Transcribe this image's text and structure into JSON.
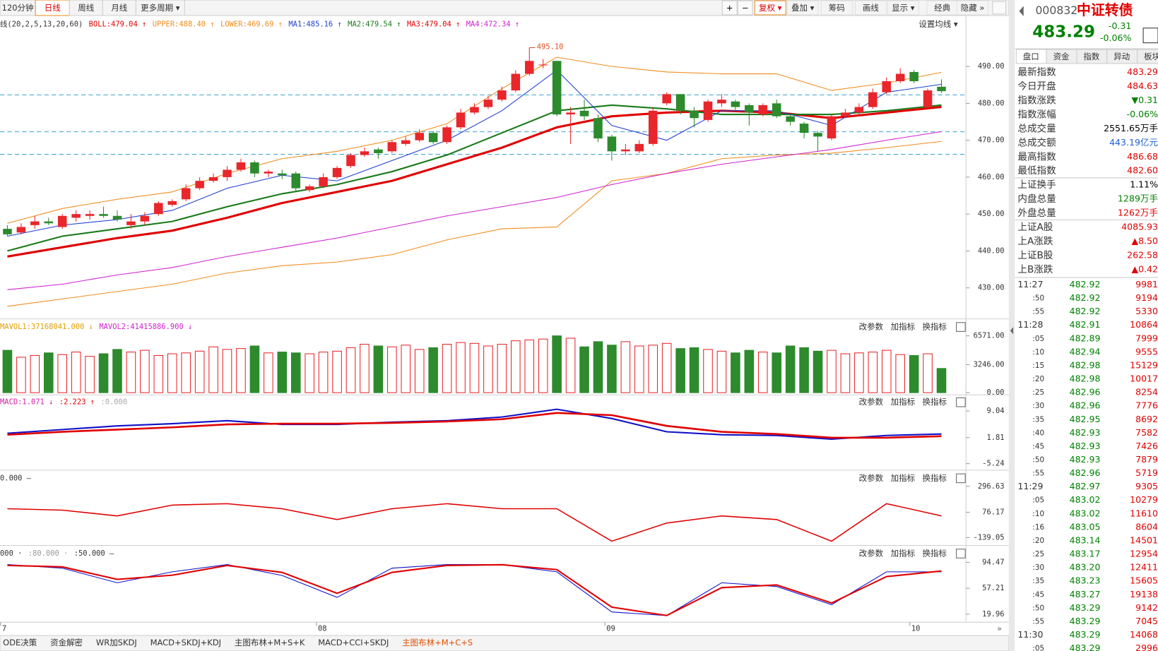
{
  "toolbar": {
    "periods": [
      "120分钟",
      "日线",
      "周线",
      "月线",
      "更多周期 ▾"
    ],
    "active_period": 1,
    "tools": [
      "复权 ▾",
      "叠加 ▾",
      "筹码",
      "画线",
      "显示 ▾",
      "经典",
      "隐藏 »"
    ],
    "active_tool": 0
  },
  "main": {
    "legend": [
      {
        "text": "线(20,2,5,13,20,60)",
        "color": "#333333"
      },
      {
        "text": "BOLL:479.04 ↑",
        "color": "#e00000"
      },
      {
        "text": "UPPER:488.40 ↑",
        "color": "#f08c1e"
      },
      {
        "text": "LOWER:469.69 ↑",
        "color": "#f08c1e"
      },
      {
        "text": "MA1:485.16 ↑",
        "color": "#1f3fd0"
      },
      {
        "text": "MA2:479.54 ↑",
        "color": "#1a7a1a"
      },
      {
        "text": "MA3:479.04 ↑",
        "color": "#e00000"
      },
      {
        "text": "MA4:472.34 ↑",
        "color": "#d020d0"
      }
    ],
    "setting": "设置均线 ▾",
    "annotation": {
      "label": "495.10",
      "value": 495.1,
      "index": 38
    },
    "up_color": "#e8262b",
    "down_color": "#2d8a2d",
    "candles": [
      [
        446,
        444.5,
        447,
        444
      ],
      [
        445,
        446.5,
        447.5,
        444.5
      ],
      [
        447,
        448,
        449.5,
        446
      ],
      [
        448,
        447.5,
        449,
        447
      ],
      [
        446.5,
        449.5,
        450,
        446
      ],
      [
        449,
        450,
        451,
        448
      ],
      [
        449.5,
        450,
        451,
        448.5
      ],
      [
        450,
        449.5,
        452,
        449
      ],
      [
        449.5,
        448.5,
        451,
        448
      ],
      [
        447,
        448,
        450,
        446
      ],
      [
        448,
        449.5,
        450.5,
        447
      ],
      [
        450,
        453,
        453.5,
        449.5
      ],
      [
        452.5,
        453.5,
        454,
        452
      ],
      [
        454,
        457,
        458,
        453.5
      ],
      [
        457,
        459,
        460,
        456.5
      ],
      [
        459,
        460,
        461,
        458.5
      ],
      [
        460,
        462,
        463,
        459
      ],
      [
        462,
        464,
        465,
        461.5
      ],
      [
        464,
        461,
        464.5,
        460
      ],
      [
        461,
        461.5,
        462,
        460
      ],
      [
        461,
        460.5,
        462,
        459.5
      ],
      [
        461,
        457,
        461.5,
        456
      ],
      [
        456.5,
        457.5,
        458,
        456
      ],
      [
        457.5,
        460,
        461,
        457
      ],
      [
        460,
        462.5,
        463,
        459.5
      ],
      [
        463,
        466,
        466.5,
        462.5
      ],
      [
        466,
        467,
        468,
        465.5
      ],
      [
        467.5,
        466.5,
        468,
        465
      ],
      [
        467,
        469.5,
        470,
        466.5
      ],
      [
        469,
        470,
        471,
        468.5
      ],
      [
        470,
        472,
        473,
        469.5
      ],
      [
        472,
        469.5,
        472.5,
        469
      ],
      [
        469.5,
        473.5,
        474,
        469
      ],
      [
        473.5,
        477.5,
        478.5,
        473
      ],
      [
        477.5,
        479,
        480,
        477
      ],
      [
        479,
        481,
        482,
        478.5
      ],
      [
        481,
        483.5,
        484.5,
        480.5
      ],
      [
        483.5,
        488,
        489,
        483
      ],
      [
        488,
        491.5,
        495.1,
        487.5
      ],
      [
        490.5,
        490.5,
        492,
        489.5
      ],
      [
        491.5,
        477,
        491.5,
        476.5
      ],
      [
        477,
        477.5,
        479,
        469
      ],
      [
        478,
        476.5,
        481,
        475.5
      ],
      [
        476,
        470.5,
        477,
        469.5
      ],
      [
        471,
        467,
        471.5,
        464.5
      ],
      [
        467,
        467.5,
        469,
        466
      ],
      [
        467,
        469,
        470,
        466.5
      ],
      [
        469,
        478,
        479,
        468.5
      ],
      [
        480,
        482.5,
        483,
        479.5
      ],
      [
        482.5,
        478,
        482.5,
        477
      ],
      [
        478,
        476,
        479,
        473.5
      ],
      [
        475.5,
        480.5,
        481,
        475
      ],
      [
        480,
        481,
        482.5,
        479
      ],
      [
        480.5,
        479,
        481,
        478
      ],
      [
        479.5,
        477.5,
        480,
        474
      ],
      [
        477,
        479.5,
        480,
        476.5
      ],
      [
        480,
        476.5,
        481,
        476
      ],
      [
        476.5,
        475,
        477,
        474
      ],
      [
        474.5,
        472,
        475,
        470.5
      ],
      [
        472,
        471,
        472.5,
        467
      ],
      [
        470.5,
        476.5,
        477,
        470
      ],
      [
        476.5,
        477.5,
        478.5,
        476
      ],
      [
        477.5,
        479,
        480,
        477
      ],
      [
        479,
        483,
        484,
        478.5
      ],
      [
        483,
        486,
        487,
        482.5
      ],
      [
        486,
        488,
        489.5,
        485.5
      ],
      [
        488.5,
        486,
        489,
        485.5
      ],
      [
        479,
        483.5,
        484,
        478.5
      ],
      [
        484.5,
        483.3,
        486.5,
        482.8
      ]
    ],
    "x": [
      0,
      4,
      8,
      12,
      16,
      20,
      24,
      28,
      32,
      36,
      40,
      44,
      48,
      52,
      56,
      60,
      64,
      68
    ],
    "series": [
      {
        "name": "UPPER",
        "color": "#f08c1e",
        "width": 1,
        "values": [
          447.5,
          451.5,
          454,
          456,
          461,
          465,
          467,
          470,
          474.5,
          484,
          492.5,
          490,
          488.5,
          488,
          488,
          483.5,
          485.5,
          488.4
        ]
      },
      {
        "name": "LOWER",
        "color": "#f08c1e",
        "width": 1,
        "values": [
          425,
          427,
          429,
          431,
          434,
          436,
          437,
          439,
          443,
          446,
          446.5,
          459,
          461,
          465,
          466,
          466.5,
          468,
          469.69
        ]
      },
      {
        "name": "MA4",
        "color": "#d020d0",
        "width": 1,
        "values": [
          429.5,
          431,
          433.5,
          435.5,
          438.5,
          441,
          443.5,
          446.5,
          449.5,
          452,
          454.5,
          458,
          461,
          463.5,
          465.5,
          467.5,
          470,
          472.34
        ]
      },
      {
        "name": "MA3",
        "color": "#e00000",
        "width": 3,
        "values": [
          438.5,
          441,
          443.5,
          445.5,
          449,
          453,
          456,
          459,
          463.5,
          468,
          473.5,
          476.5,
          477.5,
          478,
          477.5,
          476,
          477.5,
          479.04
        ]
      },
      {
        "name": "MA2",
        "color": "#1a7a1a",
        "width": 2,
        "values": [
          440,
          444,
          446,
          448,
          452,
          455.5,
          458,
          461.5,
          466,
          472,
          478,
          479.5,
          478.5,
          477,
          477,
          477,
          478,
          479.54
        ]
      },
      {
        "name": "MA1",
        "color": "#1f3fd0",
        "width": 1,
        "values": [
          444,
          447,
          448.5,
          451,
          457,
          460.5,
          459,
          464.5,
          470,
          478,
          489,
          474,
          470,
          478,
          478,
          474,
          483,
          485.16
        ]
      }
    ],
    "hlines": [
      482.3,
      472.3,
      466.2
    ],
    "ylim": [
      422,
      499
    ],
    "yticks": [
      {
        "value": 490,
        "label": "490.00"
      },
      {
        "value": 480,
        "label": "480.00"
      },
      {
        "value": 470,
        "label": "470.00"
      },
      {
        "value": 460,
        "label": "460.00"
      },
      {
        "value": 450,
        "label": "450.00"
      },
      {
        "value": 440,
        "label": "440.00"
      },
      {
        "value": 430,
        "label": "430.00"
      }
    ]
  },
  "volume": {
    "legend": [
      {
        "text": "MAVOL1:37168041.000 ↓",
        "color": "#e0a000"
      },
      {
        "text": "MAVOL2:41415886.900 ↓",
        "color": "#d020d0"
      }
    ],
    "values": [
      4900,
      4100,
      4300,
      4600,
      4400,
      4700,
      4200,
      4500,
      5000,
      4700,
      4900,
      4300,
      4500,
      4600,
      4800,
      5300,
      5000,
      5100,
      5400,
      4600,
      4700,
      4600,
      4500,
      4700,
      4800,
      5200,
      5600,
      5400,
      5300,
      5500,
      5000,
      5200,
      5600,
      5800,
      5700,
      5400,
      5600,
      6000,
      6100,
      6200,
      6571,
      6300,
      5300,
      5900,
      5500,
      5900,
      5400,
      5500,
      5700,
      5100,
      5200,
      5000,
      4800,
      4600,
      4900,
      4700,
      4600,
      5400,
      5200,
      4800,
      4900,
      4500,
      4600,
      4700,
      4900,
      4400,
      4300,
      4500,
      2800
    ],
    "ylim": [
      0,
      7000
    ],
    "yticks": [
      {
        "value": 6571,
        "label": "6571.00"
      },
      {
        "value": 3246,
        "label": "3246.00"
      },
      {
        "value": 0,
        "label": "0.00"
      }
    ]
  },
  "macd": {
    "legend": [
      {
        "text": "MACD:1.071 ↓",
        "color": "#d020a0"
      },
      {
        "text": ":2.223 ↑",
        "color": "#e00000"
      },
      {
        "text": ":0.000",
        "color": "#aaaaaa"
      }
    ],
    "ylim": [
      -6.6,
      10.8
    ],
    "yticks": [
      9.04,
      1.81,
      -5.24
    ],
    "series": [
      {
        "name": "DIF",
        "color": "#1010c8",
        "width": 2,
        "values": [
          3.0,
          4.0,
          5.0,
          5.6,
          6.4,
          5.4,
          5.4,
          6.0,
          6.4,
          7.4,
          9.5,
          7.0,
          3.4,
          2.6,
          2.4,
          1.4,
          2.4,
          2.8
        ]
      },
      {
        "name": "DEA",
        "color": "#e00000",
        "width": 2.5,
        "values": [
          2.6,
          3.4,
          4.0,
          4.6,
          5.4,
          5.6,
          5.6,
          5.8,
          6.2,
          6.8,
          8.5,
          7.9,
          5.0,
          3.4,
          2.8,
          1.8,
          1.8,
          2.2
        ]
      }
    ]
  },
  "cci": {
    "legend": [
      {
        "text": "0.000 –",
        "color": "#333333"
      }
    ],
    "ylim": [
      -200,
      340
    ],
    "yticks": [
      296.63,
      76.17,
      -139.05
    ],
    "series": [
      {
        "name": "CCI",
        "color": "#e00000",
        "width": 1.5,
        "values": [
          106,
          94,
          45,
          137,
          149,
          106,
          14,
          106,
          149,
          106,
          106,
          -170,
          -16,
          45,
          14,
          -170,
          149,
          45
        ]
      }
    ]
  },
  "kdj": {
    "legend": [
      {
        "text": "000 ·",
        "color": "#333333"
      },
      {
        "text": ":80.000 ·",
        "color": "#999999"
      },
      {
        "text": ":50.000 –",
        "color": "#333333"
      }
    ],
    "ylim": [
      10.5,
      101.8
    ],
    "yticks": [
      94.47,
      57.21,
      19.96
    ],
    "series": [
      {
        "name": "K",
        "color": "#1010c8",
        "width": 1,
        "values": [
          91.3,
          86.1,
          65.1,
          80.8,
          91.3,
          75.6,
          44.1,
          86.1,
          91.3,
          91.3,
          80.8,
          23.1,
          17.9,
          65.1,
          59.8,
          33.6,
          80.8,
          80.8
        ]
      },
      {
        "name": "D",
        "color": "#e00000",
        "width": 2,
        "values": [
          90,
          88,
          70,
          76,
          90,
          80,
          50,
          80,
          90,
          91,
          84,
          30,
          18,
          58,
          62,
          36,
          74,
          82
        ]
      }
    ]
  },
  "panel_buttons": [
    "改参数",
    "加指标",
    "换指标"
  ],
  "dates": [
    {
      "value": -0.5,
      "label": "7"
    },
    {
      "value": 22.5,
      "label": "08"
    },
    {
      "value": 43.5,
      "label": "09"
    },
    {
      "value": 65.7,
      "label": "10"
    }
  ],
  "bottom_tabs": [
    "ODE决策",
    "资金解密",
    "WR加SKDJ",
    "MACD+SKDJ+KDJ",
    "主图布林+M+S+K",
    "MACD+CCI+SKDJ",
    "主图布林+M+C+S"
  ],
  "active_tab": 6,
  "quote": {
    "code": "000832",
    "name": "中证转债",
    "price": "483.29",
    "change": "-0.31",
    "pct": "-0.06%",
    "tabs": [
      "盘口",
      "资金",
      "指数",
      "异动",
      "板块"
    ],
    "rows": [
      {
        "label": "最新指数",
        "value": "483.29",
        "color": "#e00000"
      },
      {
        "label": "今日开盘",
        "value": "484.63",
        "color": "#e00000"
      },
      {
        "label": "指数涨跌",
        "value": "▼0.31",
        "color": "#008000"
      },
      {
        "label": "指数涨幅",
        "value": "-0.06%",
        "color": "#008000"
      },
      {
        "label": "总成交量",
        "value": "2551.65万手",
        "color": "#000000"
      },
      {
        "label": "总成交额",
        "value": "443.19亿元",
        "color": "#1f5fd0"
      },
      {
        "label": "最高指数",
        "value": "486.68",
        "color": "#e00000"
      },
      {
        "label": "最低指数",
        "value": "482.60",
        "color": "#e00000"
      },
      {
        "label": "上证换手",
        "value": "1.11%",
        "color": "#000000"
      },
      {
        "label": "内盘总量",
        "value": "1289万手",
        "color": "#008000"
      },
      {
        "label": "外盘总量",
        "value": "1262万手",
        "color": "#e00000"
      },
      {
        "label": "上证A股",
        "value": "4085.93",
        "color": "#e00000"
      },
      {
        "label": "上A涨跌",
        "value": "▲8.50",
        "color": "#e00000"
      },
      {
        "label": "上证B股",
        "value": "262.58",
        "color": "#e00000"
      },
      {
        "label": "上B涨跌",
        "value": "▲0.42",
        "color": "#e00000"
      }
    ],
    "trades": [
      [
        "11:27",
        "482.92",
        "9981"
      ],
      [
        ":50",
        "482.92",
        "9194"
      ],
      [
        ":55",
        "482.92",
        "5330"
      ],
      [
        "11:28",
        "482.91",
        "10864"
      ],
      [
        ":05",
        "482.89",
        "7999"
      ],
      [
        ":10",
        "482.94",
        "9555"
      ],
      [
        ":15",
        "482.98",
        "15129"
      ],
      [
        ":20",
        "482.98",
        "10017"
      ],
      [
        ":25",
        "482.96",
        "8254"
      ],
      [
        ":30",
        "482.96",
        "7776"
      ],
      [
        ":35",
        "482.95",
        "8692"
      ],
      [
        ":40",
        "482.93",
        "7582"
      ],
      [
        ":45",
        "482.93",
        "7426"
      ],
      [
        ":50",
        "482.93",
        "7879"
      ],
      [
        ":55",
        "482.96",
        "5719"
      ],
      [
        "11:29",
        "482.97",
        "9305"
      ],
      [
        ":05",
        "483.02",
        "10279"
      ],
      [
        ":10",
        "483.02",
        "11610"
      ],
      [
        ":16",
        "483.05",
        "8604"
      ],
      [
        ":20",
        "483.14",
        "14501"
      ],
      [
        ":25",
        "483.17",
        "12954"
      ],
      [
        ":30",
        "483.20",
        "12411"
      ],
      [
        ":35",
        "483.23",
        "15605"
      ],
      [
        ":45",
        "483.27",
        "19138"
      ],
      [
        ":50",
        "483.29",
        "9142"
      ],
      [
        ":55",
        "483.29",
        "7045"
      ],
      [
        "11:30",
        "483.29",
        "14068"
      ],
      [
        ":05",
        "483.29",
        "2996"
      ]
    ]
  }
}
